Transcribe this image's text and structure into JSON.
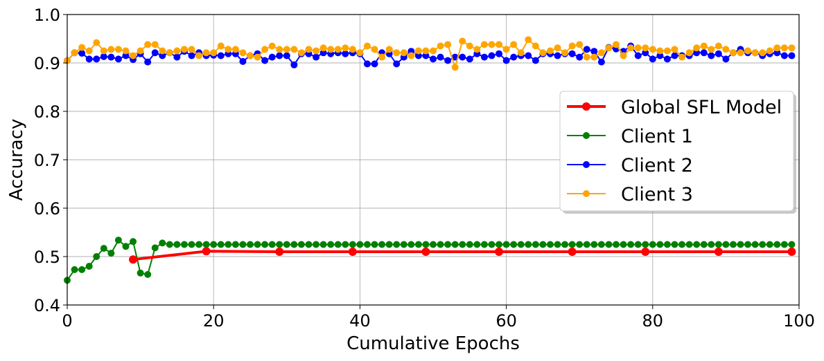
{
  "chart_data": {
    "type": "line",
    "xlabel": "Cumulative Epochs",
    "ylabel": "Accuracy",
    "xlim": [
      0,
      100
    ],
    "ylim": [
      0.4,
      1.0
    ],
    "xticks": [
      "0",
      "20",
      "40",
      "60",
      "80",
      "100"
    ],
    "yticks": [
      "0.4",
      "0.5",
      "0.6",
      "0.7",
      "0.8",
      "0.9",
      "1.0"
    ],
    "grid": true,
    "legend_position": "center-right",
    "series": [
      {
        "name": "Global SFL Model",
        "color": "#ff0000",
        "style": "thick",
        "x": [
          9,
          19,
          29,
          39,
          49,
          59,
          69,
          79,
          89,
          99
        ],
        "y": [
          0.494,
          0.511,
          0.51,
          0.51,
          0.51,
          0.51,
          0.51,
          0.51,
          0.51,
          0.51
        ]
      },
      {
        "name": "Client 1",
        "color": "#008000",
        "style": "thin",
        "x_start": 0,
        "y": [
          0.451,
          0.473,
          0.473,
          0.48,
          0.5,
          0.517,
          0.507,
          0.534,
          0.521,
          0.531,
          0.466,
          0.463,
          0.518,
          0.528,
          0.525,
          0.525,
          0.525,
          0.525,
          0.525,
          0.525,
          0.525,
          0.525,
          0.525,
          0.525,
          0.525,
          0.525,
          0.525,
          0.525,
          0.525,
          0.525,
          0.525,
          0.525,
          0.525,
          0.525,
          0.525,
          0.525,
          0.525,
          0.525,
          0.525,
          0.525,
          0.525,
          0.525,
          0.525,
          0.525,
          0.525,
          0.525,
          0.525,
          0.525,
          0.525,
          0.525,
          0.525,
          0.525,
          0.525,
          0.525,
          0.525,
          0.525,
          0.525,
          0.525,
          0.525,
          0.525,
          0.525,
          0.525,
          0.525,
          0.525,
          0.525,
          0.525,
          0.525,
          0.525,
          0.525,
          0.525,
          0.525,
          0.525,
          0.525,
          0.525,
          0.525,
          0.525,
          0.525,
          0.525,
          0.525,
          0.525,
          0.525,
          0.525,
          0.525,
          0.525,
          0.525,
          0.525,
          0.525,
          0.525,
          0.525,
          0.525,
          0.525,
          0.525,
          0.525,
          0.525,
          0.525,
          0.525,
          0.525,
          0.525,
          0.525,
          0.525
        ]
      },
      {
        "name": "Client 2",
        "color": "#0000ff",
        "style": "thin",
        "x_start": 0,
        "y": [
          0.905,
          0.921,
          0.92,
          0.908,
          0.908,
          0.913,
          0.912,
          0.908,
          0.915,
          0.907,
          0.919,
          0.902,
          0.921,
          0.915,
          0.921,
          0.912,
          0.924,
          0.915,
          0.921,
          0.915,
          0.916,
          0.915,
          0.919,
          0.919,
          0.903,
          0.915,
          0.919,
          0.905,
          0.912,
          0.915,
          0.915,
          0.896,
          0.919,
          0.919,
          0.912,
          0.921,
          0.919,
          0.921,
          0.919,
          0.921,
          0.919,
          0.898,
          0.898,
          0.921,
          0.919,
          0.898,
          0.912,
          0.924,
          0.915,
          0.915,
          0.908,
          0.912,
          0.905,
          0.912,
          0.912,
          0.908,
          0.919,
          0.912,
          0.915,
          0.919,
          0.905,
          0.912,
          0.915,
          0.915,
          0.905,
          0.919,
          0.919,
          0.915,
          0.919,
          0.919,
          0.912,
          0.928,
          0.924,
          0.902,
          0.932,
          0.929,
          0.924,
          0.935,
          0.915,
          0.921,
          0.908,
          0.915,
          0.908,
          0.915,
          0.915,
          0.915,
          0.921,
          0.921,
          0.915,
          0.919,
          0.908,
          0.921,
          0.928,
          0.921,
          0.921,
          0.915,
          0.919,
          0.921,
          0.915,
          0.915
        ]
      },
      {
        "name": "Client 3",
        "color": "#ffa500",
        "style": "thin",
        "x_start": 0,
        "y": [
          0.905,
          0.921,
          0.932,
          0.925,
          0.942,
          0.925,
          0.928,
          0.928,
          0.925,
          0.915,
          0.925,
          0.938,
          0.938,
          0.925,
          0.921,
          0.925,
          0.928,
          0.928,
          0.915,
          0.921,
          0.921,
          0.935,
          0.928,
          0.928,
          0.921,
          0.915,
          0.912,
          0.928,
          0.935,
          0.928,
          0.928,
          0.928,
          0.921,
          0.928,
          0.925,
          0.931,
          0.928,
          0.928,
          0.931,
          0.928,
          0.921,
          0.935,
          0.928,
          0.912,
          0.928,
          0.921,
          0.921,
          0.915,
          0.925,
          0.925,
          0.925,
          0.935,
          0.938,
          0.891,
          0.945,
          0.935,
          0.928,
          0.938,
          0.938,
          0.938,
          0.928,
          0.938,
          0.921,
          0.948,
          0.935,
          0.921,
          0.925,
          0.931,
          0.921,
          0.935,
          0.938,
          0.912,
          0.912,
          0.921,
          0.931,
          0.938,
          0.915,
          0.931,
          0.931,
          0.931,
          0.928,
          0.925,
          0.925,
          0.928,
          0.912,
          0.921,
          0.931,
          0.935,
          0.928,
          0.935,
          0.928,
          0.921,
          0.921,
          0.925,
          0.921,
          0.921,
          0.925,
          0.931,
          0.931,
          0.931
        ]
      }
    ]
  }
}
